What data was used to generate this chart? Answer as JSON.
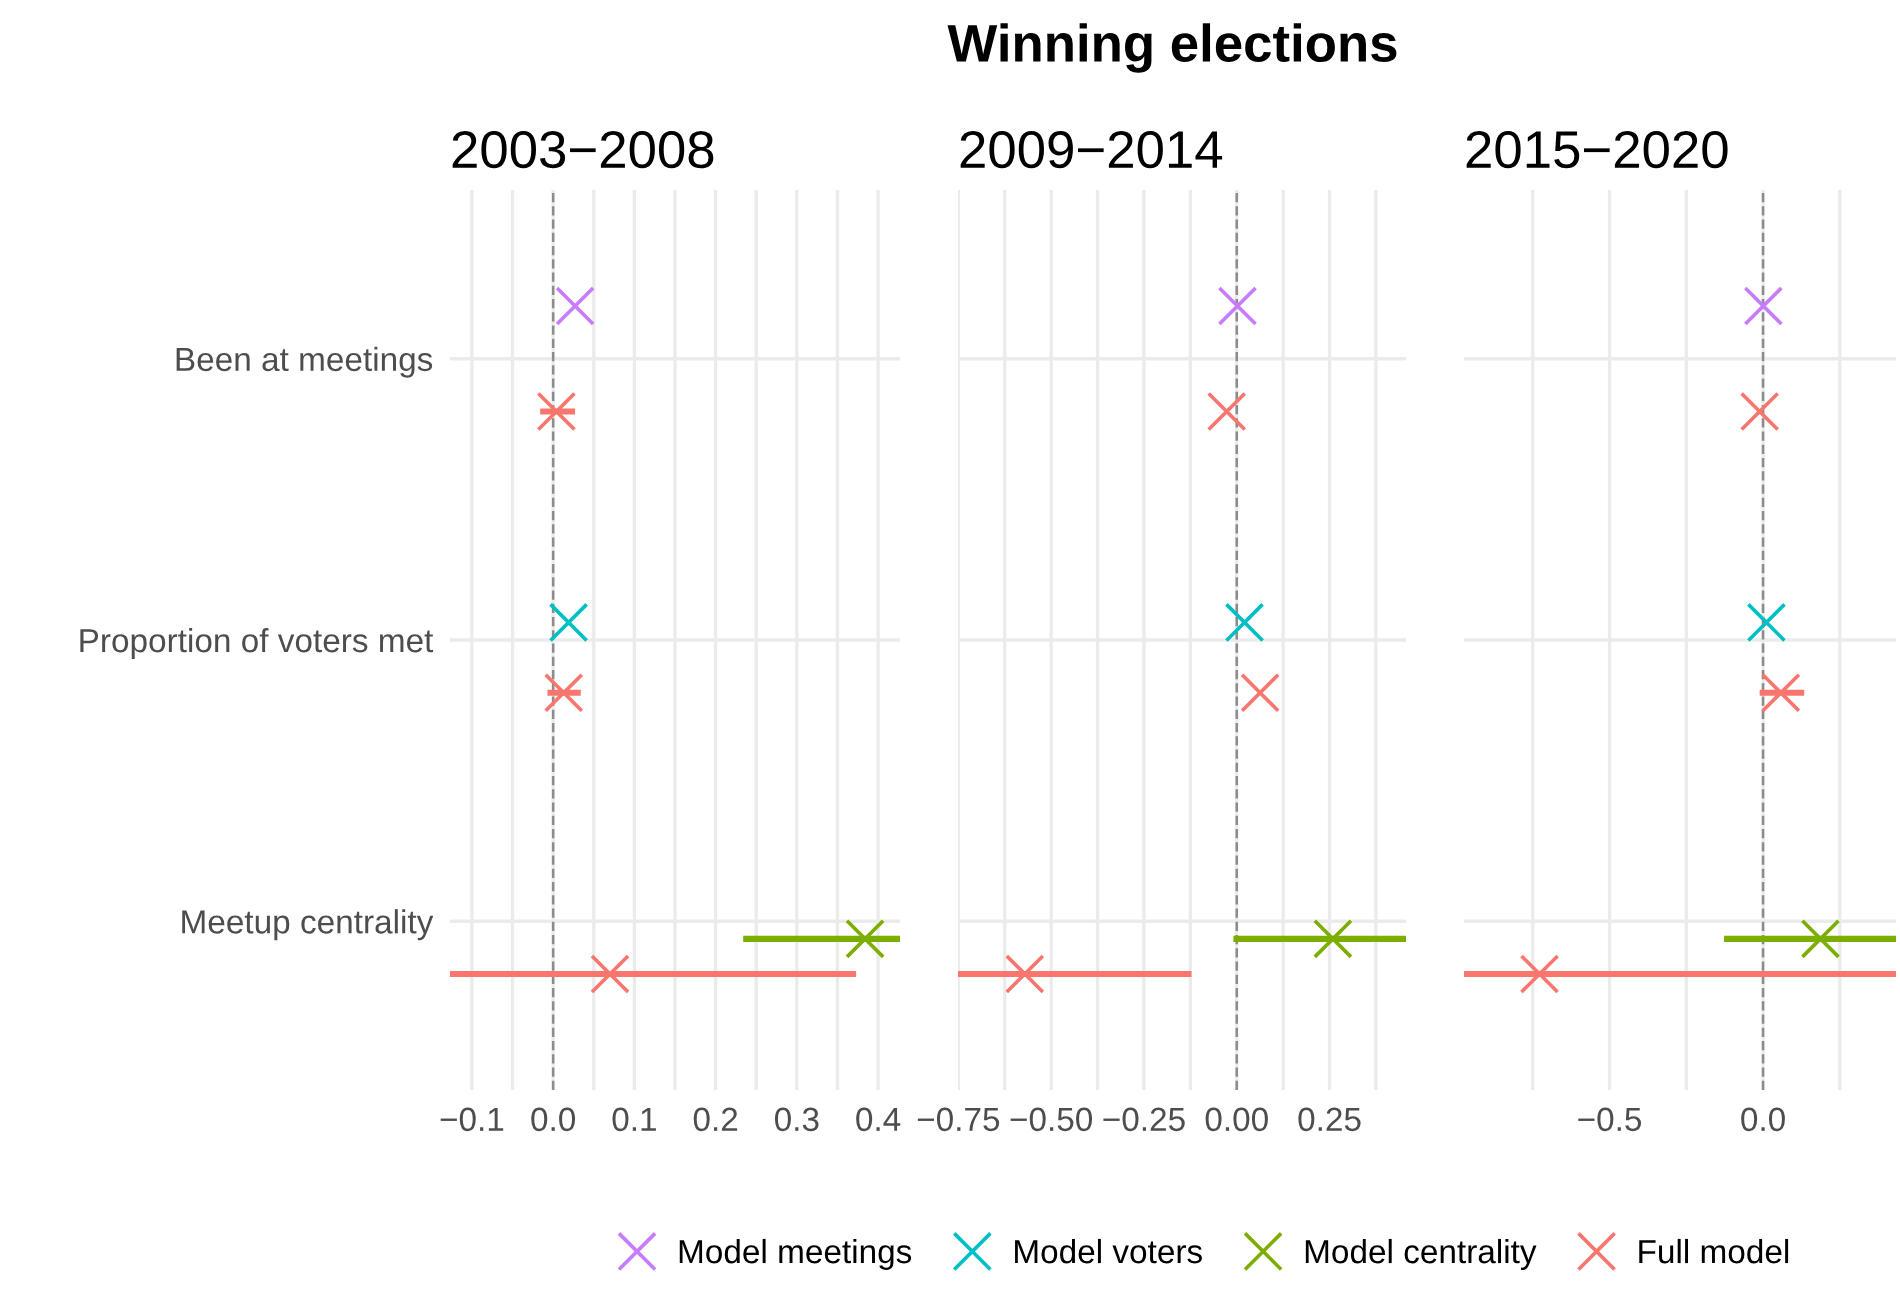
{
  "chart_data": [
    {
      "type": "scatter",
      "title": "2003−2008",
      "annotations": [
        "Winning elections"
      ],
      "orientation": "horizontal",
      "categories": [
        "Been at meetings",
        "Proportion of voters met",
        "Meetup centrality"
      ],
      "marker": "cross",
      "grid": true,
      "legend": "bottom",
      "xlim": [
        -0.127,
        0.427
      ],
      "xticks": [
        {
          "value": -0.1,
          "label": "−0.1"
        },
        {
          "value": -0.05,
          "label": null
        },
        {
          "value": 0,
          "label": "0.0"
        },
        {
          "value": 0.05,
          "label": null
        },
        {
          "value": 0.1,
          "label": "0.1"
        },
        {
          "value": 0.15,
          "label": null
        },
        {
          "value": 0.2,
          "label": "0.2"
        },
        {
          "value": 0.25,
          "label": null
        },
        {
          "value": 0.3,
          "label": "0.3"
        },
        {
          "value": 0.35,
          "label": null
        },
        {
          "value": 0.4,
          "label": "0.4"
        }
      ],
      "ref_lines": [
        {
          "axis": "x",
          "value": 0,
          "color": "#8c8c8c",
          "line_style": "dashed"
        }
      ],
      "series": [
        {
          "name": "Model meetings",
          "color": "#c77cff",
          "values": [
            0.027,
            null,
            null
          ]
        },
        {
          "name": "Model voters",
          "color": "#00bfc4",
          "values": [
            null,
            0.019,
            null
          ]
        },
        {
          "name": "Model centrality",
          "color": "#7cae00",
          "values": [
            null,
            null,
            0.384
          ],
          "errors": [
            null,
            null,
            [
              0.234,
              0.427
            ]
          ]
        },
        {
          "name": "Full model",
          "color": "#f8766d",
          "values": [
            0.004,
            0.013,
            0.07
          ],
          "errors": [
            [
              -0.016,
              0.027
            ],
            [
              -0.007,
              0.034
            ],
            [
              -0.127,
              0.373
            ]
          ]
        }
      ]
    },
    {
      "type": "scatter",
      "title": "2009−2014",
      "orientation": "horizontal",
      "categories": [
        null,
        null,
        null
      ],
      "marker": "cross",
      "grid": true,
      "tick_labels": "x",
      "xlim": [
        -0.751,
        0.456
      ],
      "xticks": [
        {
          "value": -0.75,
          "label": "−0.75"
        },
        {
          "value": -0.625,
          "label": null
        },
        {
          "value": -0.5,
          "label": "−0.50"
        },
        {
          "value": -0.375,
          "label": null
        },
        {
          "value": -0.25,
          "label": "−0.25"
        },
        {
          "value": -0.125,
          "label": null
        },
        {
          "value": 0,
          "label": "0.00"
        },
        {
          "value": 0.125,
          "label": null
        },
        {
          "value": 0.25,
          "label": "0.25"
        },
        {
          "value": 0.375,
          "label": null
        }
      ],
      "ref_lines": [
        {
          "axis": "x",
          "value": 0,
          "color": "#8c8c8c",
          "line_style": "dashed"
        }
      ],
      "series": [
        {
          "color": "#c77cff",
          "values": [
            0.002,
            null,
            null
          ]
        },
        {
          "color": "#00bfc4",
          "values": [
            null,
            0.021,
            null
          ]
        },
        {
          "color": "#7cae00",
          "values": [
            null,
            null,
            0.259
          ],
          "errors": [
            null,
            null,
            [
              -0.009,
              0.456
            ]
          ]
        },
        {
          "color": "#f8766d",
          "values": [
            -0.027,
            0.063,
            -0.571
          ],
          "errors": [
            null,
            null,
            [
              -0.751,
              -0.122
            ]
          ]
        }
      ]
    },
    {
      "type": "scatter",
      "title": "2015−2020",
      "orientation": "horizontal",
      "categories": [
        null,
        null,
        null
      ],
      "marker": "cross",
      "grid": true,
      "tick_labels": "x",
      "xlim": [
        -0.974,
        0.433
      ],
      "xticks": [
        {
          "value": -0.75,
          "label": null
        },
        {
          "value": -0.5,
          "label": "−0.5"
        },
        {
          "value": -0.25,
          "label": null
        },
        {
          "value": 0,
          "label": "0.0"
        },
        {
          "value": 0.25,
          "label": null
        }
      ],
      "ref_lines": [
        {
          "axis": "x",
          "value": 0,
          "color": "#8c8c8c",
          "line_style": "dashed"
        }
      ],
      "series": [
        {
          "color": "#c77cff",
          "values": [
            0.001,
            null,
            null
          ]
        },
        {
          "color": "#00bfc4",
          "values": [
            null,
            0.011,
            null
          ]
        },
        {
          "color": "#7cae00",
          "values": [
            null,
            null,
            0.187
          ],
          "errors": [
            null,
            null,
            [
              -0.127,
              0.433
            ]
          ]
        },
        {
          "color": "#f8766d",
          "values": [
            -0.011,
            0.058,
            -0.728
          ],
          "errors": [
            null,
            [
              -0.011,
              0.134
            ],
            [
              -0.974,
              0.433
            ]
          ]
        }
      ]
    }
  ]
}
